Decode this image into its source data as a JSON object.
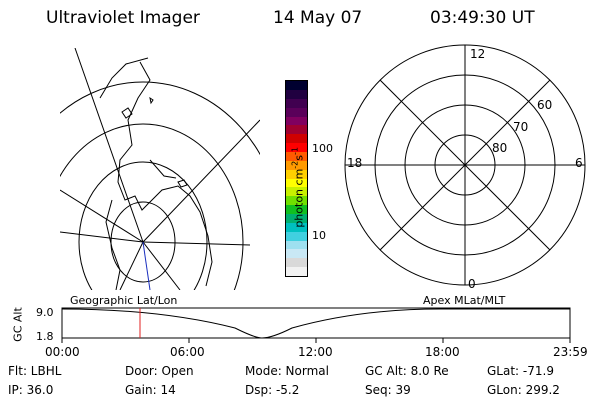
{
  "header": {
    "instrument": "Ultraviolet Imager",
    "date": "14 May 07",
    "time": "03:49:30 UT"
  },
  "colorbar": {
    "unit_label": "photon cm",
    "unit_exp1": "-2",
    "unit_s": "s",
    "unit_exp2": "-1",
    "tick_high": "100",
    "tick_low": "10",
    "colors": [
      "#f2f2f2",
      "#d9d9d9",
      "#c9e8f5",
      "#9ee0f0",
      "#40d0e0",
      "#00c0c0",
      "#00b070",
      "#10c020",
      "#70e000",
      "#c8f000",
      "#ffff00",
      "#ffd000",
      "#ff9a00",
      "#ff5a00",
      "#ff0000",
      "#d00000",
      "#a00030",
      "#800060",
      "#5a005a",
      "#400050",
      "#200040",
      "#000030"
    ]
  },
  "polar": {
    "mlt_top": "12",
    "mlt_left": "18",
    "mlt_right": "6",
    "mlt_bottom": "0",
    "lat_60": "60",
    "lat_70": "70",
    "lat_80": "80"
  },
  "timeline": {
    "y_axis_label": "GC Alt",
    "y_max": "9.0",
    "y_min": "1.8",
    "left_label": "Geographic Lat/Lon",
    "right_label": "Apex MLat/MLT",
    "ticks": [
      "00:00",
      "06:00",
      "12:00",
      "18:00",
      "23:59"
    ]
  },
  "status": {
    "flt": "Flt: LBHL",
    "ip": "IP: 36.0",
    "door": "Door: Open",
    "gain": "Gain: 14",
    "mode": "Mode: Normal",
    "dsp": "Dsp:   -5.2",
    "gcalt": "GC Alt: 8.0 Re",
    "seq": "Seq: 39",
    "glat": "GLat: -71.9",
    "glon": "GLon: 299.2"
  }
}
